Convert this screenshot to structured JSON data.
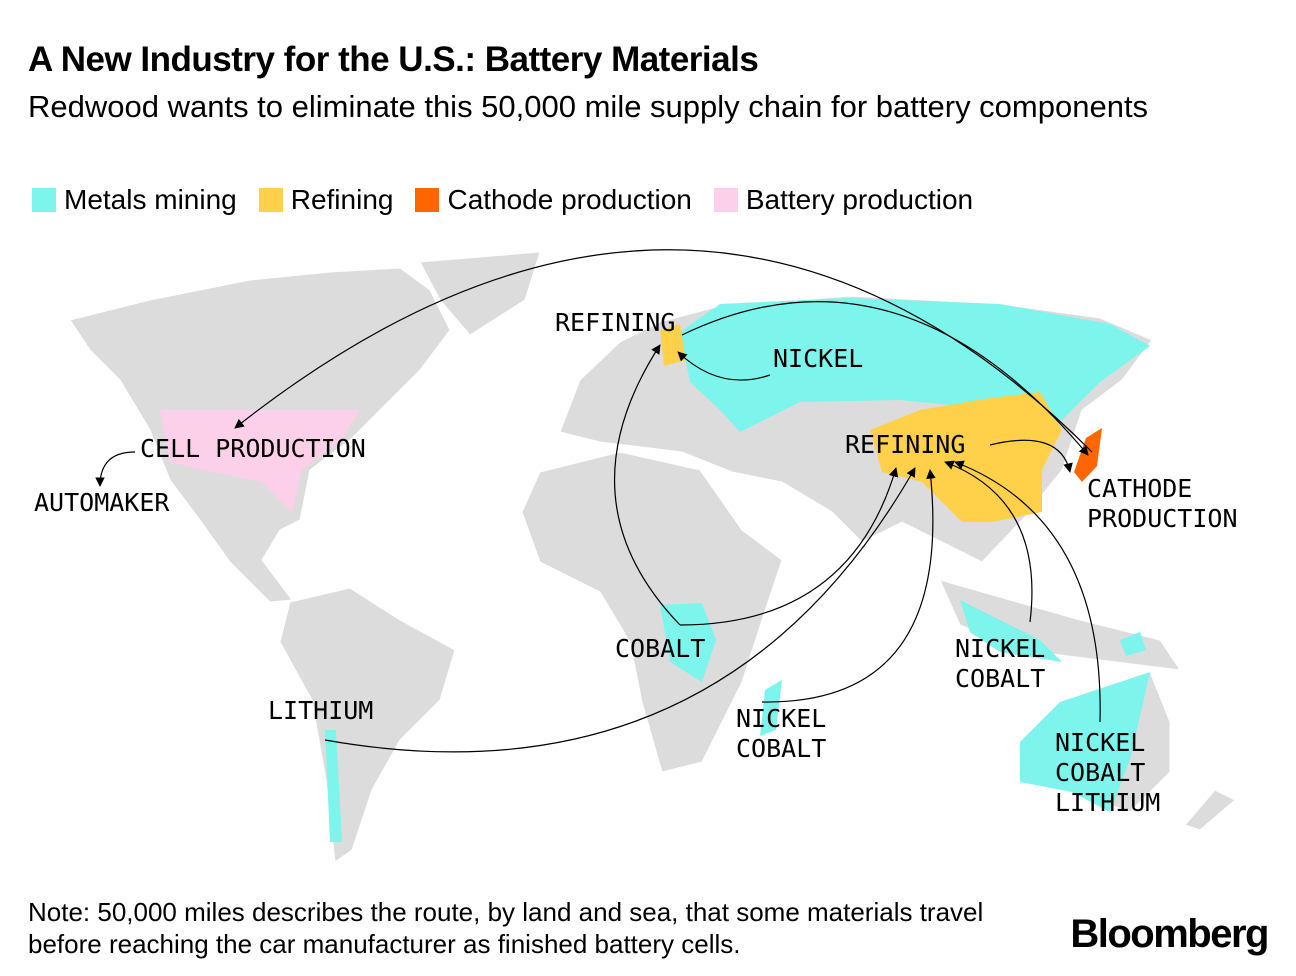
{
  "title": "A New Industry for the U.S.: Battery Materials",
  "subtitle": "Redwood wants to eliminate this 50,000 mile supply chain for battery components",
  "legend": [
    {
      "label": "Metals mining",
      "color": "#7ef5ec"
    },
    {
      "label": "Refining",
      "color": "#ffd14a"
    },
    {
      "label": "Cathode production",
      "color": "#ff6600"
    },
    {
      "label": "Battery production",
      "color": "#fbd0e8"
    }
  ],
  "map": {
    "land_color": "#dcdcdc",
    "labels": {
      "refining_europe": "REFINING",
      "nickel_russia": "NICKEL",
      "refining_china": "REFINING",
      "cathode": "CATHODE\nPRODUCTION",
      "cell_production": "CELL PRODUCTION",
      "automaker": "AUTOMAKER",
      "cobalt_congo": "COBALT",
      "lithium_chile": "LITHIUM",
      "madagascar": "NICKEL\nCOBALT",
      "indonesia": "NICKEL\nCOBALT",
      "australia": "NICKEL\nCOBALT\nLITHIUM"
    }
  },
  "note": "Note: 50,000 miles describes the route, by land and sea, that some materials travel before reaching the car manufacturer as finished battery cells.",
  "source_logo": "Bloomberg"
}
